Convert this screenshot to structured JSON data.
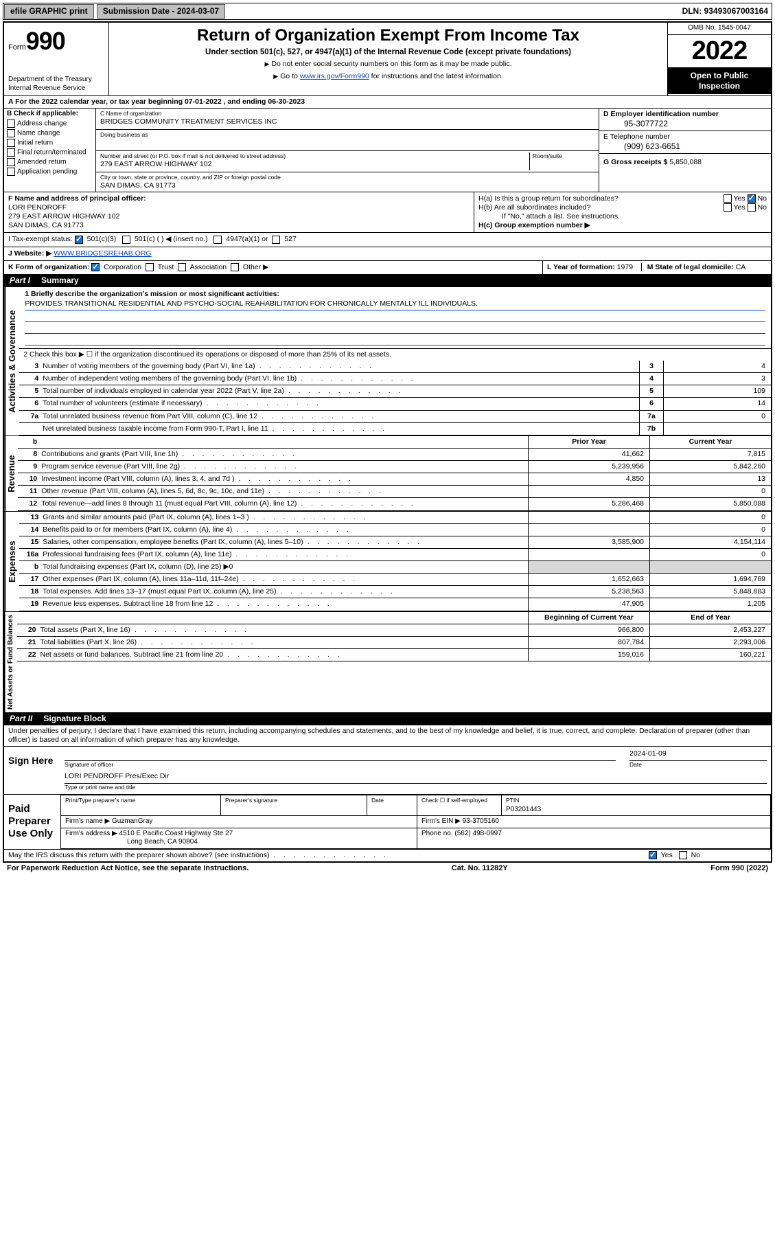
{
  "topbar": {
    "efile": "efile GRAPHIC print",
    "sub_label": "Submission Date - 2024-03-07",
    "dln": "DLN: 93493067003164"
  },
  "header": {
    "form_word": "Form",
    "form_num": "990",
    "dept": "Department of the Treasury\nInternal Revenue Service",
    "title": "Return of Organization Exempt From Income Tax",
    "sub": "Under section 501(c), 527, or 4947(a)(1) of the Internal Revenue Code (except private foundations)",
    "note1": "Do not enter social security numbers on this form as it may be made public.",
    "note2_pre": "Go to ",
    "note2_link": "www.irs.gov/Form990",
    "note2_post": " for instructions and the latest information.",
    "omb": "OMB No. 1545-0047",
    "year": "2022",
    "open": "Open to Public Inspection"
  },
  "A": {
    "text_a": "A For the 2022 calendar year, or tax year beginning ",
    "begin": "07-01-2022",
    "mid": "     , and ending ",
    "end": "06-30-2023"
  },
  "B": {
    "label": "B Check if applicable:",
    "items": [
      "Address change",
      "Name change",
      "Initial return",
      "Final return/terminated",
      "Amended return",
      "Application pending"
    ]
  },
  "C": {
    "name_label": "C Name of organization",
    "name": "BRIDGES COMMUNITY TREATMENT SERVICES INC",
    "dba_label": "Doing business as",
    "street_label": "Number and street (or P.O. box if mail is not delivered to street address)",
    "room_label": "Room/suite",
    "street": "279 EAST ARROW HIGHWAY 102",
    "city_label": "City or town, state or province, country, and ZIP or foreign postal code",
    "city": "SAN DIMAS, CA  91773"
  },
  "D": {
    "label": "D Employer identification number",
    "val": "95-3077722"
  },
  "E": {
    "label": "E Telephone number",
    "val": "(909) 623-6651"
  },
  "G": {
    "label": "G Gross receipts $",
    "val": "5,850,088"
  },
  "F": {
    "label": "F Name and address of principal officer:",
    "name": "LORI PENDROFF",
    "addr1": "279 EAST ARROW HIGHWAY 102",
    "addr2": "SAN DIMAS, CA  91773"
  },
  "H": {
    "a": "H(a)  Is this a group return for subordinates?",
    "b": "H(b)  Are all subordinates included?",
    "b_note": "If \"No,\" attach a list. See instructions.",
    "c": "H(c)  Group exemption number ▶",
    "yes": "Yes",
    "no": "No"
  },
  "I": {
    "label": "I    Tax-exempt status:",
    "o1": "501(c)(3)",
    "o2": "501(c) (  ) ◀ (insert no.)",
    "o3": "4947(a)(1) or",
    "o4": "527"
  },
  "J": {
    "label": "J    Website: ▶",
    "val": "WWW.BRIDGESREHAB.ORG"
  },
  "K": {
    "label": "K Form of organization:",
    "o1": "Corporation",
    "o2": "Trust",
    "o3": "Association",
    "o4": "Other ▶"
  },
  "L": {
    "label": "L Year of formation:",
    "val": "1979"
  },
  "M": {
    "label": "M State of legal domicile:",
    "val": "CA"
  },
  "part1": {
    "num": "Part I",
    "title": "Summary"
  },
  "mission": {
    "q": "1   Briefly describe the organization's mission or most significant activities:",
    "text": "PROVIDES TRANSITIONAL RESIDENTIAL AND PSYCHO-SOCIAL REAHABILITATION FOR CHRONICALLY MENTALLY ILL INDIVIDUALS."
  },
  "line2": "2   Check this box ▶ ☐  if the organization discontinued its operations or disposed of more than 25% of its net assets.",
  "gov": {
    "lines": [
      {
        "n": "3",
        "d": "Number of voting members of the governing body (Part VI, line 1a)",
        "c": "3",
        "v": "4"
      },
      {
        "n": "4",
        "d": "Number of independent voting members of the governing body (Part VI, line 1b)",
        "c": "4",
        "v": "3"
      },
      {
        "n": "5",
        "d": "Total number of individuals employed in calendar year 2022 (Part V, line 2a)",
        "c": "5",
        "v": "109"
      },
      {
        "n": "6",
        "d": "Total number of volunteers (estimate if necessary)",
        "c": "6",
        "v": "14"
      },
      {
        "n": "7a",
        "d": "Total unrelated business revenue from Part VIII, column (C), line 12",
        "c": "7a",
        "v": "0"
      },
      {
        "n": "",
        "d": "Net unrelated business taxable income from Form 990-T, Part I, line 11",
        "c": "7b",
        "v": ""
      }
    ]
  },
  "col_hdr": {
    "prior": "Prior Year",
    "curr": "Current Year"
  },
  "rev": {
    "label": "Revenue",
    "lines": [
      {
        "n": "8",
        "d": "Contributions and grants (Part VIII, line 1h)",
        "p": "41,662",
        "c": "7,815"
      },
      {
        "n": "9",
        "d": "Program service revenue (Part VIII, line 2g)",
        "p": "5,239,956",
        "c": "5,842,260"
      },
      {
        "n": "10",
        "d": "Investment income (Part VIII, column (A), lines 3, 4, and 7d )",
        "p": "4,850",
        "c": "13"
      },
      {
        "n": "11",
        "d": "Other revenue (Part VIII, column (A), lines 5, 6d, 8c, 9c, 10c, and 11e)",
        "p": "",
        "c": "0"
      },
      {
        "n": "12",
        "d": "Total revenue—add lines 8 through 11 (must equal Part VIII, column (A), line 12)",
        "p": "5,286,468",
        "c": "5,850,088"
      }
    ]
  },
  "exp": {
    "label": "Expenses",
    "lines": [
      {
        "n": "13",
        "d": "Grants and similar amounts paid (Part IX, column (A), lines 1–3 )",
        "p": "",
        "c": "0"
      },
      {
        "n": "14",
        "d": "Benefits paid to or for members (Part IX, column (A), line 4)",
        "p": "",
        "c": "0"
      },
      {
        "n": "15",
        "d": "Salaries, other compensation, employee benefits (Part IX, column (A), lines 5–10)",
        "p": "3,585,900",
        "c": "4,154,114"
      },
      {
        "n": "16a",
        "d": "Professional fundraising fees (Part IX, column (A), line 11e)",
        "p": "",
        "c": "0"
      },
      {
        "n": "b",
        "d": "Total fundraising expenses (Part IX, column (D), line 25) ▶0",
        "p": null,
        "c": null
      },
      {
        "n": "17",
        "d": "Other expenses (Part IX, column (A), lines 11a–11d, 11f–24e)",
        "p": "1,652,663",
        "c": "1,694,769"
      },
      {
        "n": "18",
        "d": "Total expenses. Add lines 13–17 (must equal Part IX, column (A), line 25)",
        "p": "5,238,563",
        "c": "5,848,883"
      },
      {
        "n": "19",
        "d": "Revenue less expenses. Subtract line 18 from line 12",
        "p": "47,905",
        "c": "1,205"
      }
    ]
  },
  "nab": {
    "label": "Net Assets or Fund Balances",
    "hdr_b": "Beginning of Current Year",
    "hdr_e": "End of Year",
    "lines": [
      {
        "n": "20",
        "d": "Total assets (Part X, line 16)",
        "p": "966,800",
        "c": "2,453,227"
      },
      {
        "n": "21",
        "d": "Total liabilities (Part X, line 26)",
        "p": "807,784",
        "c": "2,293,006"
      },
      {
        "n": "22",
        "d": "Net assets or fund balances. Subtract line 21 from line 20",
        "p": "159,016",
        "c": "160,221"
      }
    ]
  },
  "part2": {
    "num": "Part II",
    "title": "Signature Block"
  },
  "sig": {
    "decl": "Under penalties of perjury, I declare that I have examined this return, including accompanying schedules and statements, and to the best of my knowledge and belief, it is true, correct, and complete. Declaration of preparer (other than officer) is based on all information of which preparer has any knowledge.",
    "sign_here": "Sign Here",
    "sig_officer": "Signature of officer",
    "date_label": "Date",
    "date_val": "2024-01-09",
    "name_title": "LORI PENDROFF Pres/Exec Dir",
    "type_label": "Type or print name and title"
  },
  "paid": {
    "title": "Paid Preparer Use Only",
    "h1": "Print/Type preparer's name",
    "h2": "Preparer's signature",
    "h3": "Date",
    "h4_pre": "Check ☐ if self-employed",
    "h5": "PTIN",
    "ptin": "P03201443",
    "firm_name_l": "Firm's name    ▶",
    "firm_name": "GuzmanGray",
    "firm_ein_l": "Firm's EIN ▶",
    "firm_ein": "93-3705160",
    "firm_addr_l": "Firm's address ▶",
    "firm_addr1": "4510 E Pacific Coast Highway Ste 27",
    "firm_addr2": "Long Beach, CA  90804",
    "phone_l": "Phone no.",
    "phone": "(562) 498-0997"
  },
  "discuss": {
    "q": "May the IRS discuss this return with the preparer shown above? (see instructions)",
    "yes": "Yes",
    "no": "No"
  },
  "footer": {
    "left": "For Paperwork Reduction Act Notice, see the separate instructions.",
    "mid": "Cat. No. 11282Y",
    "right": "Form 990 (2022)"
  },
  "sidelabels": {
    "act": "Activities & Governance"
  }
}
